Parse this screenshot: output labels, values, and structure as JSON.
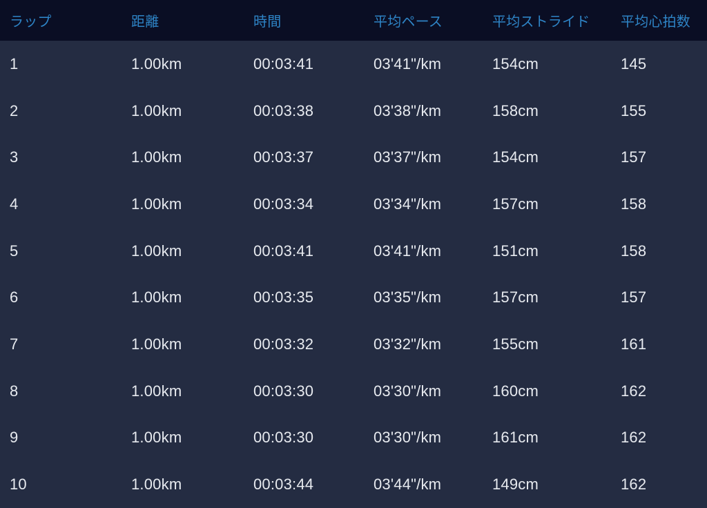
{
  "table": {
    "columns": [
      {
        "key": "lap",
        "label": "ラップ"
      },
      {
        "key": "distance",
        "label": "距離"
      },
      {
        "key": "time",
        "label": "時間"
      },
      {
        "key": "avg_pace",
        "label": "平均ペース"
      },
      {
        "key": "avg_stride",
        "label": "平均ストライド"
      },
      {
        "key": "avg_heart_rate",
        "label": "平均心拍数"
      }
    ],
    "rows": [
      [
        "1",
        "1.00km",
        "00:03:41",
        "03'41\"/km",
        "154cm",
        "145"
      ],
      [
        "2",
        "1.00km",
        "00:03:38",
        "03'38\"/km",
        "158cm",
        "155"
      ],
      [
        "3",
        "1.00km",
        "00:03:37",
        "03'37\"/km",
        "154cm",
        "157"
      ],
      [
        "4",
        "1.00km",
        "00:03:34",
        "03'34\"/km",
        "157cm",
        "158"
      ],
      [
        "5",
        "1.00km",
        "00:03:41",
        "03'41\"/km",
        "151cm",
        "158"
      ],
      [
        "6",
        "1.00km",
        "00:03:35",
        "03'35\"/km",
        "157cm",
        "157"
      ],
      [
        "7",
        "1.00km",
        "00:03:32",
        "03'32\"/km",
        "155cm",
        "161"
      ],
      [
        "8",
        "1.00km",
        "00:03:30",
        "03'30\"/km",
        "160cm",
        "162"
      ],
      [
        "9",
        "1.00km",
        "00:03:30",
        "03'30\"/km",
        "161cm",
        "162"
      ],
      [
        "10",
        "1.00km",
        "00:03:44",
        "03'44\"/km",
        "149cm",
        "162"
      ]
    ]
  },
  "colors": {
    "header_background": "#0a0e24",
    "body_background": "#242c42",
    "header_text": "#2e84c6",
    "body_text": "#e7eaef"
  }
}
